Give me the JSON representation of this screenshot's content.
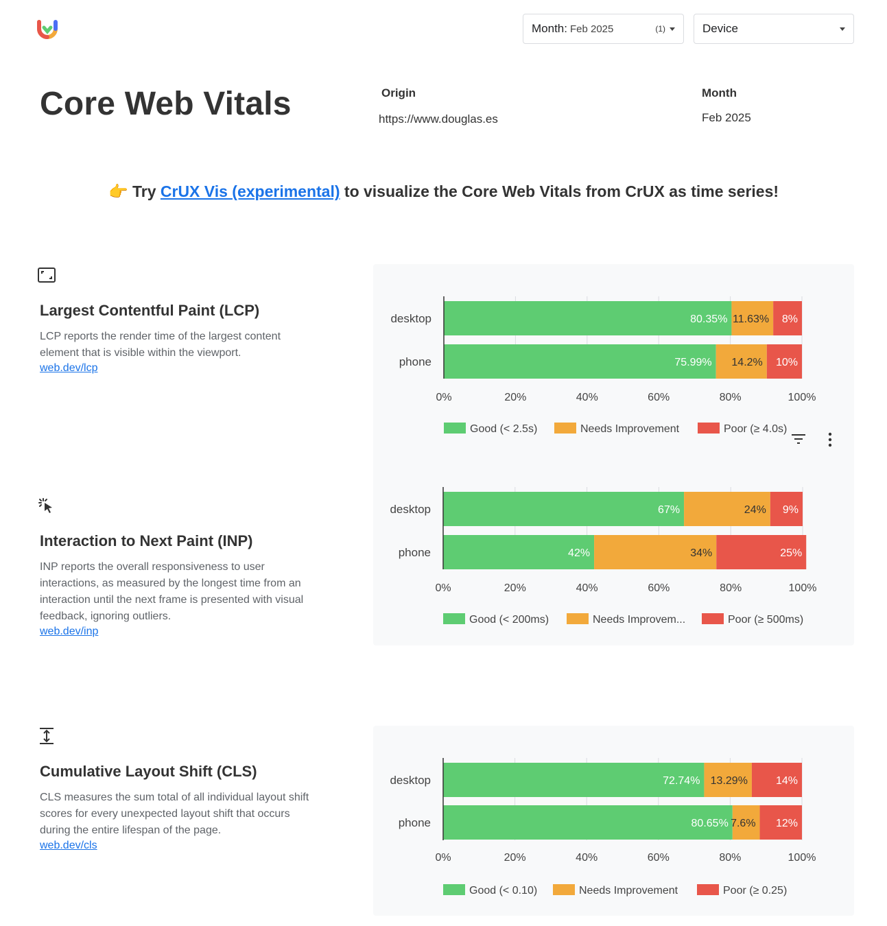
{
  "header": {
    "month_dropdown": {
      "label": "Month:",
      "value": "Feb 2025",
      "count": "(1)"
    },
    "device_dropdown": {
      "label": "Device"
    }
  },
  "page_title": "Core Web Vitals",
  "origin": {
    "label": "Origin",
    "value": "https://www.douglas.es"
  },
  "month": {
    "label": "Month",
    "value": "Feb 2025"
  },
  "promo": {
    "emoji": "👉",
    "prefix": "Try",
    "link": "CrUX Vis (experimental)",
    "suffix": "to visualize the Core Web Vitals from CrUX as time series!"
  },
  "metrics": [
    {
      "icon": "lcp-frame-icon",
      "title": "Largest Contentful Paint (LCP)",
      "description": "LCP reports the render time of the largest content element that is visible within the viewport.",
      "link": "web.dev/lcp"
    },
    {
      "icon": "inp-pointer-click-icon",
      "title": "Interaction to Next Paint (INP)",
      "description": "INP reports the overall responsiveness to user interactions, as measured by the longest time from an interaction until the next frame is presented with visual feedback, ignoring outliers.",
      "link": "web.dev/inp"
    },
    {
      "icon": "cls-vertical-shift-icon",
      "title": "Cumulative Layout Shift (CLS)",
      "description": "CLS measures the sum total of all individual layout shift scores for every unexpected layout shift that occurs during the entire lifespan of the page.",
      "link": "web.dev/cls"
    }
  ],
  "colors": {
    "good": "#5ecc72",
    "needs": "#f2a93b",
    "poor": "#e8564a",
    "panel": "#f8f9fa"
  },
  "chart_data": [
    {
      "type": "bar",
      "orientation": "horizontal",
      "stacked": true,
      "categories": [
        "desktop",
        "phone"
      ],
      "x_ticks": [
        "0%",
        "20%",
        "40%",
        "60%",
        "80%",
        "100%"
      ],
      "xlim": [
        0,
        100
      ],
      "grid": true,
      "legend_position": "bottom",
      "series": [
        {
          "name": "Good (< 2.5s)",
          "color": "#5ecc72",
          "values": [
            80.35,
            75.99
          ],
          "labels": [
            "80.35%",
            "75.99%"
          ]
        },
        {
          "name": "Needs Improvement",
          "color": "#f2a93b",
          "values": [
            11.63,
            14.2
          ],
          "labels": [
            "11.63%",
            "14.2%"
          ]
        },
        {
          "name": "Poor (≥ 4.0s)",
          "color": "#e8564a",
          "values": [
            8.02,
            9.81
          ],
          "labels": [
            "8%",
            "10%"
          ]
        }
      ]
    },
    {
      "type": "bar",
      "orientation": "horizontal",
      "stacked": true,
      "categories": [
        "desktop",
        "phone"
      ],
      "x_ticks": [
        "0%",
        "20%",
        "40%",
        "60%",
        "80%",
        "100%"
      ],
      "xlim": [
        0,
        100
      ],
      "grid": true,
      "legend_position": "bottom",
      "series": [
        {
          "name": "Good (< 200ms)",
          "color": "#5ecc72",
          "values": [
            67,
            42
          ],
          "labels": [
            "67%",
            "42%"
          ]
        },
        {
          "name": "Needs Improvem...",
          "color": "#f2a93b",
          "values": [
            24,
            34
          ],
          "labels": [
            "24%",
            "34%"
          ]
        },
        {
          "name": "Poor (≥ 500ms)",
          "color": "#e8564a",
          "values": [
            9,
            25
          ],
          "labels": [
            "9%",
            "25%"
          ]
        }
      ]
    },
    {
      "type": "bar",
      "orientation": "horizontal",
      "stacked": true,
      "categories": [
        "desktop",
        "phone"
      ],
      "x_ticks": [
        "0%",
        "20%",
        "40%",
        "60%",
        "80%",
        "100%"
      ],
      "xlim": [
        0,
        100
      ],
      "grid": true,
      "legend_position": "bottom",
      "series": [
        {
          "name": "Good (< 0.10)",
          "color": "#5ecc72",
          "values": [
            72.74,
            80.65
          ],
          "labels": [
            "72.74%",
            "80.65%"
          ]
        },
        {
          "name": "Needs Improvement",
          "color": "#f2a93b",
          "values": [
            13.29,
            7.6
          ],
          "labels": [
            "13.29%",
            "7.6%"
          ]
        },
        {
          "name": "Poor (≥ 0.25)",
          "color": "#e8564a",
          "values": [
            13.97,
            11.75
          ],
          "labels": [
            "14%",
            "12%"
          ]
        }
      ]
    }
  ]
}
